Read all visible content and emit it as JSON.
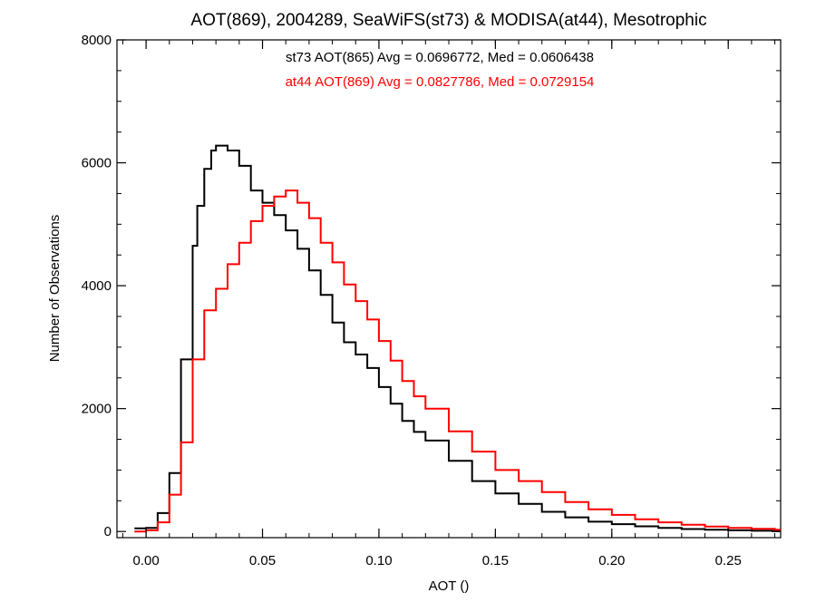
{
  "chart_data": {
    "type": "line",
    "style": "step-histogram",
    "title": "AOT(869), 2004289, SeaWiFS(st73) & MODISA(at44), Mesotrophic",
    "xlabel": "AOT ()",
    "ylabel": "Number of Observations",
    "xlim": [
      -0.0125,
      0.2725
    ],
    "ylim": [
      -100,
      8000
    ],
    "xticks": [
      0.0,
      0.05,
      0.1,
      0.15,
      0.2,
      0.25
    ],
    "xtick_labels": [
      "0.00",
      "0.05",
      "0.10",
      "0.15",
      "0.20",
      "0.25"
    ],
    "yticks": [
      0,
      2000,
      4000,
      6000,
      8000
    ],
    "ytick_labels": [
      "0",
      "2000",
      "4000",
      "6000",
      "8000"
    ],
    "grid": false,
    "annotations": [
      {
        "text": "st73 AOT(865) Avg = 0.0696772, Med = 0.0606438",
        "color": "#000000"
      },
      {
        "text": "at44 AOT(869) Avg = 0.0827786, Med = 0.0729154",
        "color": "#ff0000"
      }
    ],
    "series": [
      {
        "color": "#000000",
        "x": [
          -0.005,
          0.0,
          0.005,
          0.01,
          0.015,
          0.02,
          0.022,
          0.025,
          0.028,
          0.03,
          0.035,
          0.04,
          0.045,
          0.05,
          0.055,
          0.06,
          0.065,
          0.07,
          0.075,
          0.08,
          0.085,
          0.09,
          0.095,
          0.1,
          0.105,
          0.11,
          0.115,
          0.12,
          0.13,
          0.14,
          0.15,
          0.16,
          0.17,
          0.18,
          0.19,
          0.2,
          0.21,
          0.22,
          0.23,
          0.24,
          0.25,
          0.26,
          0.27
        ],
        "y": [
          50,
          60,
          300,
          950,
          2800,
          4650,
          5300,
          5900,
          6200,
          6280,
          6200,
          5950,
          5550,
          5350,
          5150,
          4900,
          4600,
          4250,
          3850,
          3400,
          3080,
          2880,
          2660,
          2350,
          2080,
          1800,
          1620,
          1480,
          1150,
          820,
          620,
          450,
          320,
          230,
          160,
          120,
          85,
          60,
          40,
          30,
          20,
          12,
          8
        ]
      },
      {
        "color": "#ff0000",
        "x": [
          -0.005,
          0.0,
          0.005,
          0.01,
          0.015,
          0.02,
          0.025,
          0.03,
          0.035,
          0.04,
          0.045,
          0.05,
          0.055,
          0.06,
          0.065,
          0.07,
          0.075,
          0.08,
          0.085,
          0.09,
          0.095,
          0.1,
          0.105,
          0.11,
          0.115,
          0.12,
          0.13,
          0.14,
          0.15,
          0.16,
          0.17,
          0.18,
          0.19,
          0.2,
          0.21,
          0.22,
          0.23,
          0.24,
          0.25,
          0.26,
          0.27
        ],
        "y": [
          0,
          20,
          150,
          600,
          1450,
          2800,
          3600,
          3950,
          4350,
          4700,
          5050,
          5300,
          5450,
          5550,
          5350,
          5100,
          4700,
          4380,
          4020,
          3750,
          3450,
          3100,
          2780,
          2450,
          2200,
          2000,
          1630,
          1300,
          1000,
          820,
          640,
          480,
          360,
          270,
          200,
          150,
          110,
          80,
          60,
          45,
          30
        ]
      }
    ]
  }
}
